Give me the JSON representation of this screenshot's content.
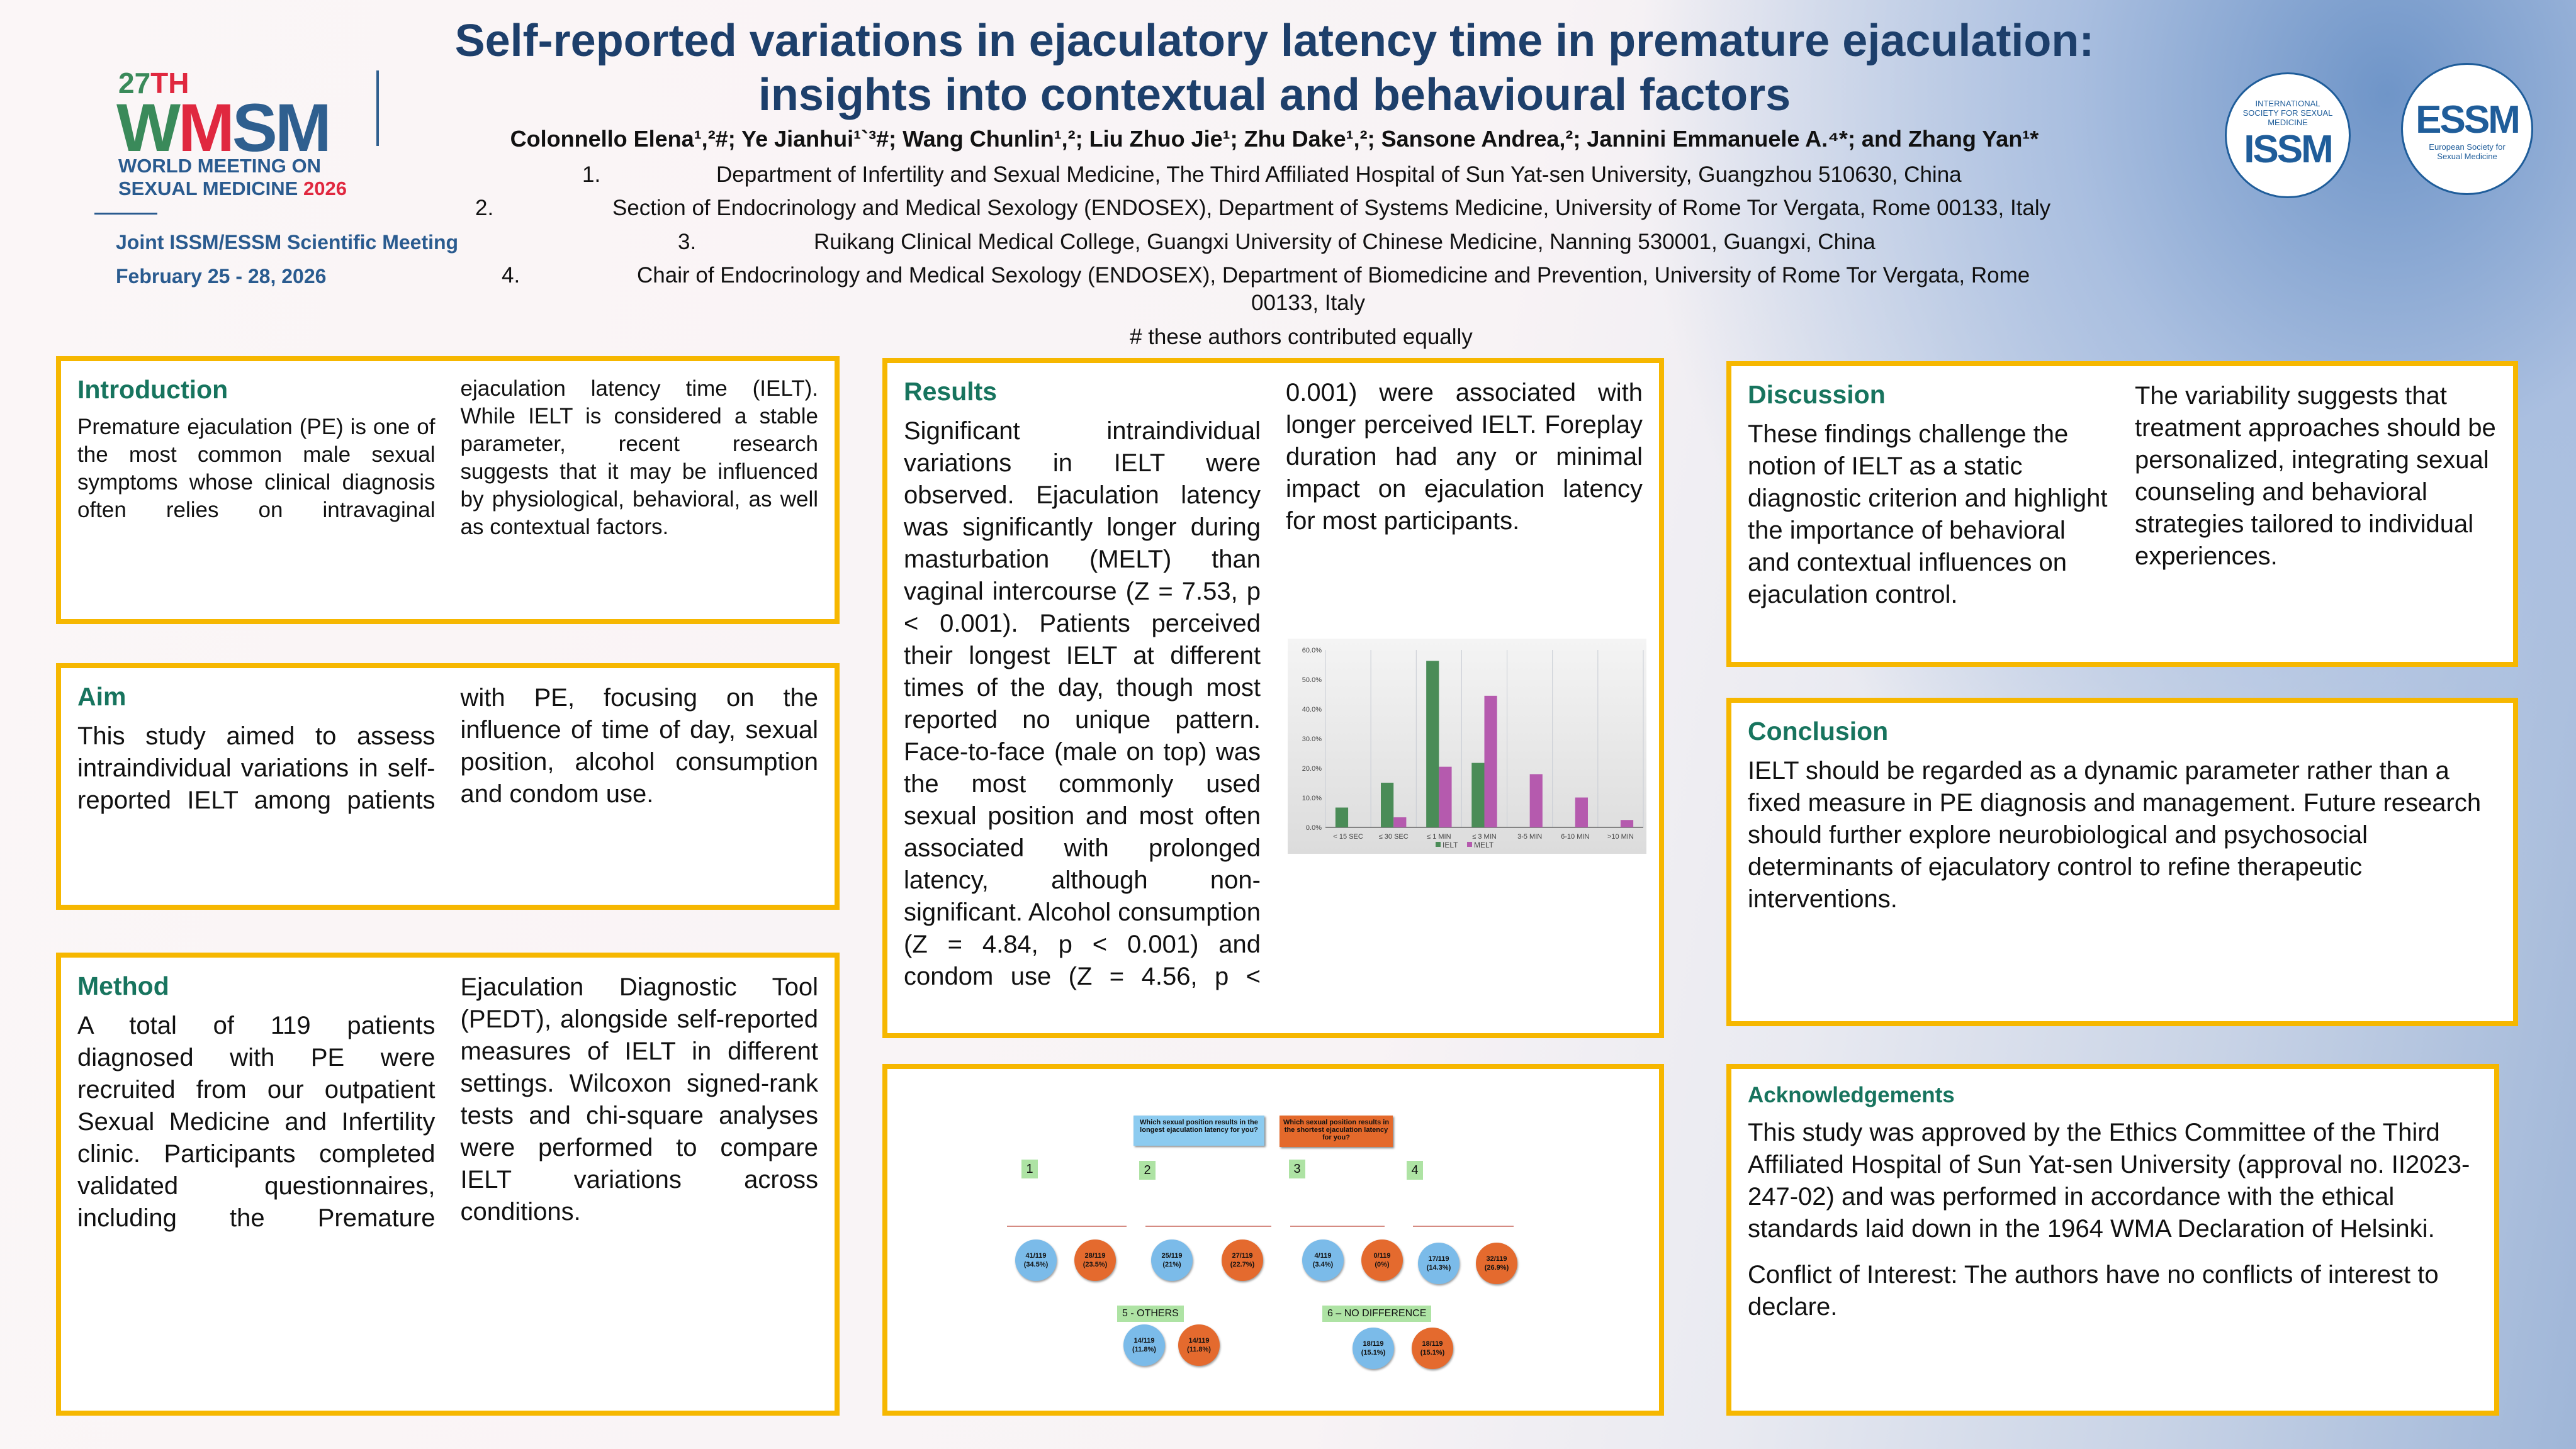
{
  "conference": {
    "edition": "27TH",
    "edition_num": "27",
    "edition_suffix": "TH",
    "acronym": "WMSM",
    "line1": "WORLD MEETING ON",
    "line2": "SEXUAL MEDICINE",
    "year": "2026",
    "joint": "Joint ISSM/ESSM Scientific Meeting",
    "dates": "February 25 - 28, 2026"
  },
  "logos": {
    "issm": {
      "acronym": "ISSM",
      "text": "INTERNATIONAL SOCIETY FOR SEXUAL MEDICINE"
    },
    "essm": {
      "acronym": "ESSM",
      "text": "European Society for Sexual Medicine"
    }
  },
  "title": {
    "line1": "Self-reported variations in ejaculatory latency time in premature ejaculation:",
    "line2": "insights into contextual and behavioural factors"
  },
  "authors": "Colonnello Elena¹,²#; Ye Jianhui¹`³#; Wang Chunlin¹,²; Liu Zhuo Jie¹; Zhu Dake¹,²; Sansone Andrea,²; Jannini Emmanuele A.⁴*; and Zhang Yan¹*",
  "affiliations": [
    {
      "num": "1.",
      "text": "Department of Infertility and Sexual Medicine, The Third Affiliated Hospital of Sun Yat-sen University, Guangzhou 510630, China"
    },
    {
      "num": "2.",
      "text": "Section of Endocrinology and Medical Sexology (ENDOSEX), Department of Systems Medicine, University of Rome Tor Vergata, Rome 00133, Italy"
    },
    {
      "num": "3.",
      "text": "Ruikang Clinical Medical College, Guangxi University of Chinese Medicine, Nanning 530001, Guangxi, China"
    },
    {
      "num": "4.",
      "text": "Chair of Endocrinology and Medical Sexology (ENDOSEX), Department of Biomedicine and Prevention, University of Rome Tor Vergata, Rome",
      "text2": "00133, Italy"
    }
  ],
  "equal_note": "# these authors contributed equally",
  "introduction": {
    "heading": "Introduction",
    "body": "Premature ejaculation (PE) is one of the most common male sexual symptoms whose clinical diagnosis often relies on intravaginal ejaculation latency time (IELT). While IELT is considered a stable parameter, recent research suggests that it may be influenced by physiological, behavioral, as well as contextual factors."
  },
  "aim": {
    "heading": "Aim",
    "body": "This study aimed to assess intraindividual variations in self-reported IELT among patients with PE, focusing on the influence of time of day, sexual position, alcohol consumption and condom use."
  },
  "method": {
    "heading": "Method",
    "body": "A total of 119 patients diagnosed with PE were recruited from our outpatient Sexual Medicine and Infertility clinic. Participants completed validated questionnaires, including the Premature Ejaculation Diagnostic Tool (PEDT), alongside self-reported measures of IELT in different settings. Wilcoxon signed-rank tests and chi-square analyses were performed to compare IELT variations across conditions."
  },
  "results": {
    "heading": "Results",
    "body": "Significant intraindividual variations in IELT were observed. Ejaculation latency was significantly longer during masturbation (MELT) than vaginal intercourse (Z = 7.53, p < 0.001). Patients perceived their longest IELT at different times of the day, though most reported no unique pattern. Face-to-face (male on top) was the most commonly used sexual position and most often associated with prolonged latency, although non-significant. Alcohol consumption (Z = 4.84, p < 0.001) and condom use (Z = 4.56, p < 0.001) were associated with longer perceived IELT. Foreplay duration had any or minimal impact on ejaculation latency for most participants."
  },
  "chart_data": {
    "type": "bar",
    "categories": [
      "< 15 SEC",
      "≤ 30 SEC",
      "≤ 1 MIN",
      "≤ 3 MIN",
      "3-5 MIN",
      "6-10 MIN",
      ">10 MIN"
    ],
    "series": [
      {
        "name": "IELT",
        "color": "#4a8c57",
        "values": [
          6.7,
          15.1,
          56.3,
          21.8,
          0,
          0,
          0
        ]
      },
      {
        "name": "MELT",
        "color": "#b55aae",
        "values": [
          0,
          3.4,
          20.5,
          44.5,
          18.0,
          10.1,
          2.5
        ]
      }
    ],
    "yticks": [
      "0.0%",
      "10.0%",
      "20.0%",
      "30.0%",
      "40.0%",
      "50.0%",
      "60.0%"
    ],
    "ylim": [
      0,
      60
    ],
    "legend": "bottom",
    "grid": true
  },
  "positions": {
    "q_longest": "Which sexual position results in the longest ejaculation latency for you?",
    "q_shortest": "Which sexual position results in the shortest ejaculation latency for you?",
    "items": [
      {
        "label": "1",
        "longest": "41/119",
        "longest_pct": "(34.5%)",
        "shortest": "28/119",
        "shortest_pct": "(23.5%)"
      },
      {
        "label": "2",
        "longest": "25/119",
        "longest_pct": "(21%)",
        "shortest": "27/119",
        "shortest_pct": "(22.7%)"
      },
      {
        "label": "3",
        "longest": "4/119",
        "longest_pct": "(3.4%)",
        "shortest": "0/119",
        "shortest_pct": "(0%)"
      },
      {
        "label": "4",
        "longest": "17/119",
        "longest_pct": "(14.3%)",
        "shortest": "32/119",
        "shortest_pct": "(26.9%)"
      },
      {
        "label": "5 - OTHERS",
        "longest": "14/119",
        "longest_pct": "(11.8%)",
        "shortest": "14/119",
        "shortest_pct": "(11.8%)"
      },
      {
        "label": "6 – NO DIFFERENCE",
        "longest": "18/119",
        "longest_pct": "(15.1%)",
        "shortest": "18/119",
        "shortest_pct": "(15.1%)"
      }
    ]
  },
  "discussion": {
    "heading": "Discussion",
    "body": "These findings challenge the notion of IELT as a static diagnostic criterion and highlight the importance of behavioral and contextual influences on ejaculation control.",
    "body2": "The variability suggests that treatment approaches should be personalized, integrating sexual counseling and behavioral strategies tailored to individual experiences."
  },
  "conclusion": {
    "heading": "Conclusion",
    "body": "IELT should be regarded as a dynamic parameter rather than a fixed measure in PE diagnosis and management. Future research should further explore neurobiological and psychosocial determinants of ejaculatory control to refine therapeutic interventions."
  },
  "acknowledgements": {
    "heading": "Acknowledgements",
    "body": "This study was approved by the Ethics Committee of the Third Affiliated Hospital of Sun Yat-sen University (approval no. II2023-247-02) and was performed in accordance with the ethical standards laid down in the 1964 WMA Declaration of Helsinki.",
    "coi": "Conflict of Interest: The authors have no conflicts of interest to declare."
  }
}
